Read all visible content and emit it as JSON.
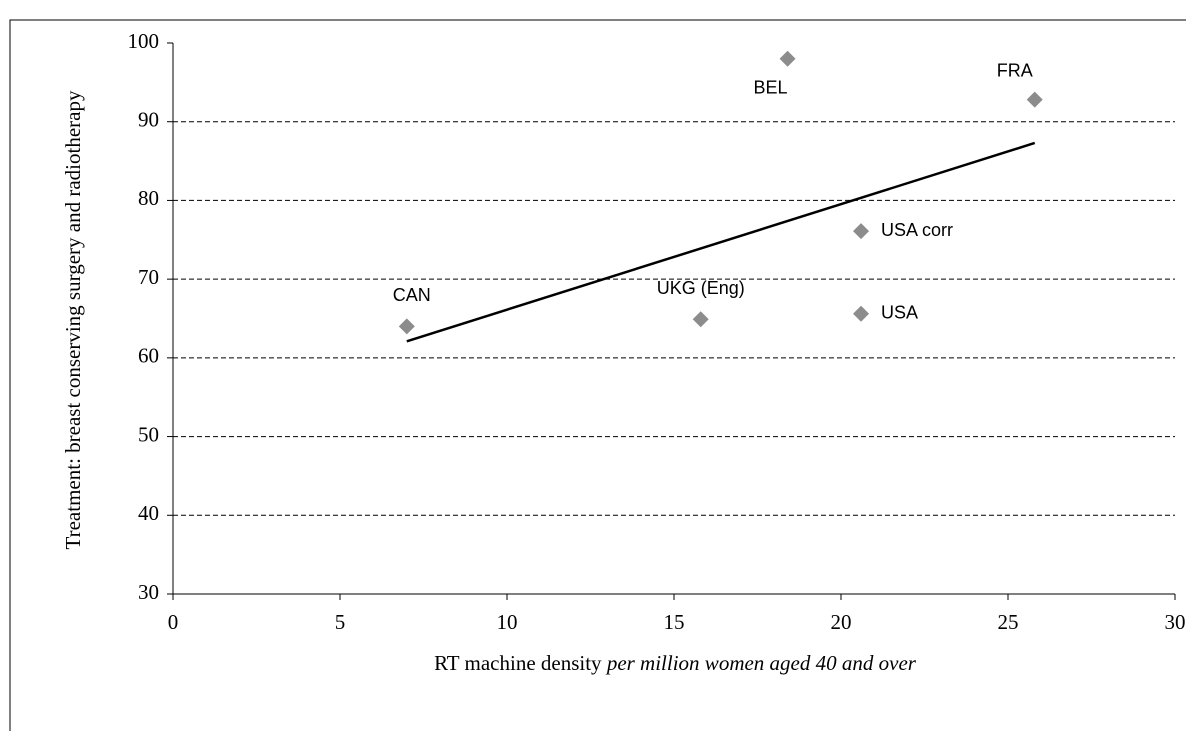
{
  "chart_data": {
    "type": "scatter",
    "xlabel": "RT machine density",
    "xlabel_note": "per million women aged 40 and over",
    "ylabel": "Treatment: breast conserving surgery and radiotherapy",
    "series": [
      {
        "color": "#8c8c8c",
        "labels": [
          "CAN",
          "UKG (Eng)",
          "BEL",
          "USA corr",
          "USA",
          "FRA"
        ],
        "x": [
          7.0,
          15.8,
          18.4,
          20.6,
          20.6,
          25.8
        ],
        "values": [
          64.0,
          64.9,
          98.0,
          76.1,
          65.6,
          92.8
        ]
      }
    ],
    "trendline": {
      "color": "#000000",
      "x": [
        7.0,
        25.8
      ],
      "values": [
        62.1,
        87.3
      ]
    },
    "xlim": [
      0,
      30
    ],
    "xticks": [
      0,
      5,
      10,
      15,
      20,
      25,
      30
    ],
    "ylim": [
      30,
      100
    ],
    "yticks": [
      30,
      40,
      50,
      60,
      70,
      80,
      90,
      100
    ],
    "grid": true
  }
}
